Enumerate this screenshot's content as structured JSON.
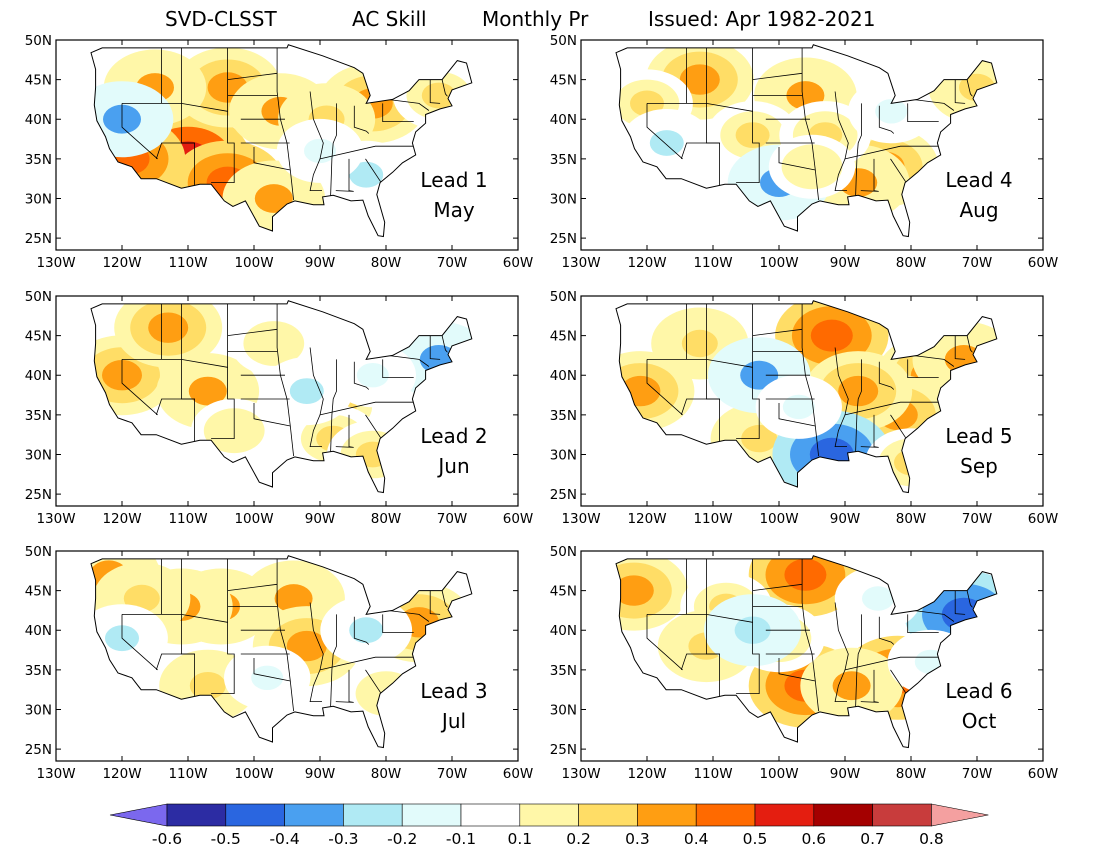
{
  "title": {
    "model": "SVD-CLSST",
    "metric": "AC Skill",
    "variable": "Monthly Pr",
    "issued": "Issued: Apr 1982-2021"
  },
  "axes": {
    "lon_labels": [
      "130W",
      "120W",
      "110W",
      "100W",
      "90W",
      "80W",
      "70W",
      "60W"
    ],
    "lat_labels": [
      "50N",
      "45N",
      "40N",
      "35N",
      "30N",
      "25N"
    ],
    "lon_values": [
      -130,
      -120,
      -110,
      -100,
      -90,
      -80,
      -70,
      -60
    ],
    "lat_values": [
      50,
      45,
      40,
      35,
      30,
      25
    ],
    "lon_range": [
      -130,
      -60
    ],
    "lat_range": [
      23.5,
      50
    ]
  },
  "colors": {
    "background": "#ffffff",
    "outline": "#000000"
  },
  "panels": [
    {
      "lead_label": "Lead 1",
      "month_label": "May",
      "blobs": [
        {
          "lon": -110,
          "lat": 35,
          "value": 0.5
        },
        {
          "lon": -119,
          "lat": 35,
          "value": 0.4
        },
        {
          "lon": -104,
          "lat": 32,
          "value": 0.4
        },
        {
          "lon": -104,
          "lat": 44,
          "value": 0.35
        },
        {
          "lon": -82,
          "lat": 42,
          "value": 0.35
        },
        {
          "lon": -115,
          "lat": 44,
          "value": 0.3
        },
        {
          "lon": -96,
          "lat": 41,
          "value": 0.3
        },
        {
          "lon": -89,
          "lat": 40,
          "value": 0.25
        },
        {
          "lon": -72,
          "lat": 43,
          "value": 0.2
        },
        {
          "lon": -97,
          "lat": 30,
          "value": 0.3
        },
        {
          "lon": -120,
          "lat": 40,
          "value": -0.3
        },
        {
          "lon": -83,
          "lat": 33,
          "value": -0.2
        },
        {
          "lon": -90,
          "lat": 36,
          "value": -0.15
        }
      ]
    },
    {
      "lead_label": "Lead 4",
      "month_label": "Aug",
      "blobs": [
        {
          "lon": -112,
          "lat": 45,
          "value": 0.35
        },
        {
          "lon": -96,
          "lat": 43,
          "value": 0.3
        },
        {
          "lon": -84,
          "lat": 34,
          "value": 0.35
        },
        {
          "lon": -88,
          "lat": 32,
          "value": 0.3
        },
        {
          "lon": -70,
          "lat": 44,
          "value": 0.25
        },
        {
          "lon": -120,
          "lat": 42,
          "value": 0.2
        },
        {
          "lon": -104,
          "lat": 38,
          "value": 0.2
        },
        {
          "lon": -93,
          "lat": 38,
          "value": 0.2
        },
        {
          "lon": -100,
          "lat": 32,
          "value": -0.3
        },
        {
          "lon": -117,
          "lat": 37,
          "value": -0.2
        },
        {
          "lon": -83,
          "lat": 41,
          "value": -0.15
        },
        {
          "lon": -95,
          "lat": 34,
          "value": 0.15
        }
      ]
    },
    {
      "lead_label": "Lead 2",
      "month_label": "Jun",
      "blobs": [
        {
          "lon": -120,
          "lat": 40,
          "value": 0.35
        },
        {
          "lon": -113,
          "lat": 46,
          "value": 0.35
        },
        {
          "lon": -107,
          "lat": 38,
          "value": 0.3
        },
        {
          "lon": -87,
          "lat": 36,
          "value": 0.2
        },
        {
          "lon": -97,
          "lat": 44,
          "value": 0.15
        },
        {
          "lon": -88,
          "lat": 32,
          "value": 0.2
        },
        {
          "lon": -82,
          "lat": 30,
          "value": 0.2
        },
        {
          "lon": -103,
          "lat": 33,
          "value": 0.15
        },
        {
          "lon": -72,
          "lat": 42,
          "value": -0.3
        },
        {
          "lon": -92,
          "lat": 38,
          "value": -0.2
        },
        {
          "lon": -82,
          "lat": 40,
          "value": -0.15
        }
      ]
    },
    {
      "lead_label": "Lead 5",
      "month_label": "Sep",
      "blobs": [
        {
          "lon": -92,
          "lat": 45,
          "value": 0.4
        },
        {
          "lon": -77,
          "lat": 40,
          "value": 0.35
        },
        {
          "lon": -82,
          "lat": 35,
          "value": 0.35
        },
        {
          "lon": -88,
          "lat": 38,
          "value": 0.35
        },
        {
          "lon": -72,
          "lat": 42,
          "value": 0.3
        },
        {
          "lon": -121,
          "lat": 38,
          "value": 0.35
        },
        {
          "lon": -112,
          "lat": 44,
          "value": 0.25
        },
        {
          "lon": -103,
          "lat": 32,
          "value": 0.25
        },
        {
          "lon": -92,
          "lat": 30,
          "value": -0.45
        },
        {
          "lon": -103,
          "lat": 40,
          "value": -0.3
        },
        {
          "lon": -97,
          "lat": 36,
          "value": -0.15
        },
        {
          "lon": -80,
          "lat": 29,
          "value": 0.2
        }
      ]
    },
    {
      "lead_label": "Lead 3",
      "month_label": "Jul",
      "blobs": [
        {
          "lon": -105,
          "lat": 43,
          "value": 0.3
        },
        {
          "lon": -94,
          "lat": 44,
          "value": 0.3
        },
        {
          "lon": -92,
          "lat": 38,
          "value": 0.35
        },
        {
          "lon": -111,
          "lat": 43,
          "value": 0.3
        },
        {
          "lon": -122,
          "lat": 47,
          "value": 0.3
        },
        {
          "lon": -75,
          "lat": 41,
          "value": 0.35
        },
        {
          "lon": -117,
          "lat": 44,
          "value": 0.25
        },
        {
          "lon": -107,
          "lat": 33,
          "value": 0.25
        },
        {
          "lon": -80,
          "lat": 32,
          "value": 0.15
        },
        {
          "lon": -120,
          "lat": 39,
          "value": -0.2
        },
        {
          "lon": -83,
          "lat": 40,
          "value": -0.2
        },
        {
          "lon": -98,
          "lat": 34,
          "value": -0.15
        }
      ]
    },
    {
      "lead_label": "Lead 6",
      "month_label": "Oct",
      "blobs": [
        {
          "lon": -96,
          "lat": 47,
          "value": 0.4
        },
        {
          "lon": -96,
          "lat": 33,
          "value": 0.4
        },
        {
          "lon": -82,
          "lat": 34,
          "value": 0.4
        },
        {
          "lon": -89,
          "lat": 33,
          "value": 0.3
        },
        {
          "lon": -122,
          "lat": 45,
          "value": 0.35
        },
        {
          "lon": -108,
          "lat": 43,
          "value": 0.2
        },
        {
          "lon": -111,
          "lat": 38,
          "value": 0.25
        },
        {
          "lon": -100,
          "lat": 39,
          "value": 0.2
        },
        {
          "lon": -72,
          "lat": 42,
          "value": -0.45
        },
        {
          "lon": -104,
          "lat": 40,
          "value": -0.25
        },
        {
          "lon": -85,
          "lat": 44,
          "value": -0.15
        },
        {
          "lon": -77,
          "lat": 36,
          "value": -0.15
        }
      ]
    }
  ],
  "colorbar": {
    "labels": [
      "-0.6",
      "-0.5",
      "-0.4",
      "-0.3",
      "-0.2",
      "-0.1",
      "0.1",
      "0.2",
      "0.3",
      "0.4",
      "0.5",
      "0.6",
      "0.7",
      "0.8"
    ],
    "colors": [
      "#7b68ee",
      "#2c2ca3",
      "#2a66e0",
      "#4aa0f0",
      "#b0eaf4",
      "#e2fbfb",
      "#ffffff",
      "#fff7a8",
      "#ffdd66",
      "#ff9e12",
      "#ff6a00",
      "#e41e10",
      "#a40000",
      "#c83c3c",
      "#f4a0a0"
    ]
  }
}
